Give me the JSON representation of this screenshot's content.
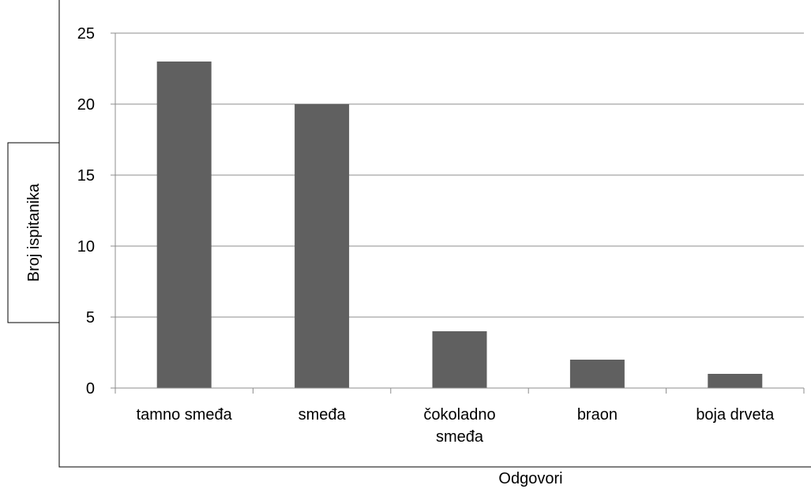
{
  "chart_data": {
    "type": "bar",
    "categories": [
      [
        "tamno smeđa"
      ],
      [
        "smeđa"
      ],
      [
        "čokoladno",
        "smeđa"
      ],
      [
        "braon"
      ],
      [
        "boja drveta"
      ]
    ],
    "values": [
      23,
      20,
      4,
      2,
      1
    ],
    "xlabel": "Odgovori",
    "ylabel": "Broj ispitanika",
    "ylim": [
      0,
      25
    ],
    "yticks": [
      0,
      5,
      10,
      15,
      20,
      25
    ],
    "grid": true,
    "legend": "none",
    "colors": {
      "bar": "#606060",
      "grid": "#8c8c8c",
      "axis": "#8c8c8c",
      "frame": "#000000"
    }
  }
}
